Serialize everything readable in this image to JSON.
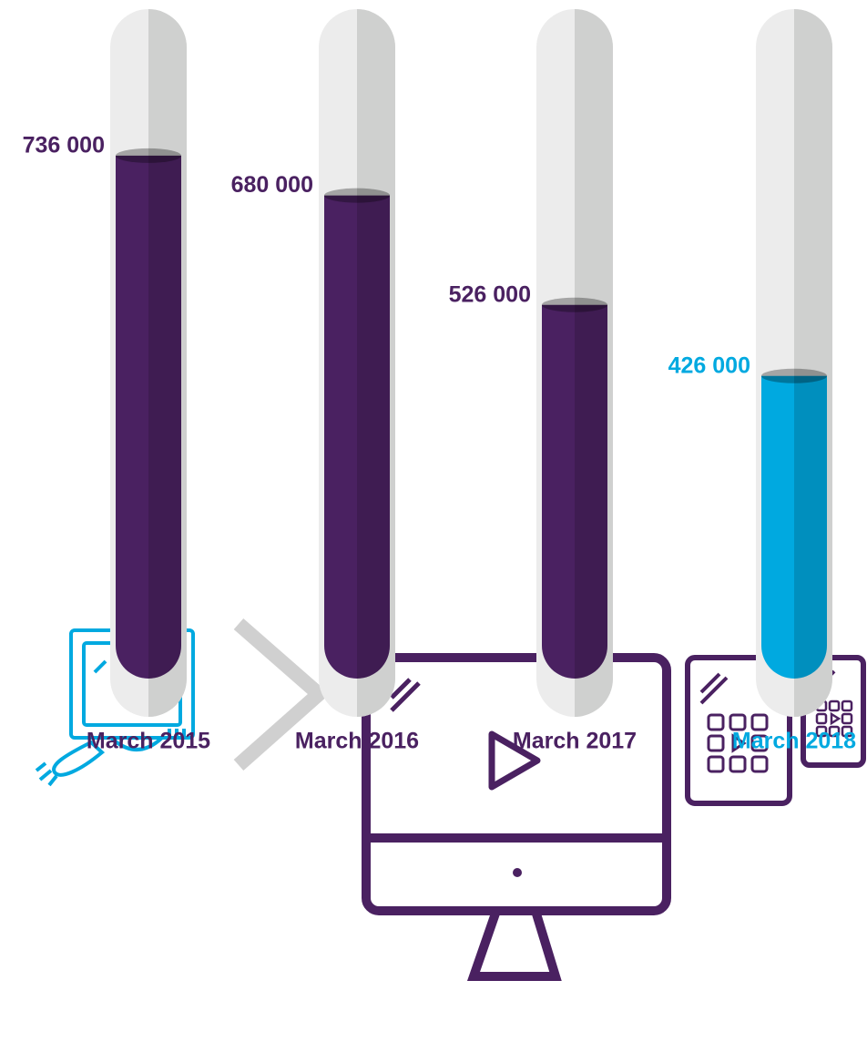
{
  "chart_data": {
    "type": "bar",
    "categories": [
      "March 2015",
      "March 2016",
      "March 2017",
      "March 2018"
    ],
    "values": [
      736000,
      680000,
      526000,
      426000
    ],
    "value_labels": [
      "736 000",
      "680 000",
      "526 000",
      "426 000"
    ],
    "colors": [
      "#4a2161",
      "#4a2161",
      "#4a2161",
      "#00a9e0"
    ]
  }
}
